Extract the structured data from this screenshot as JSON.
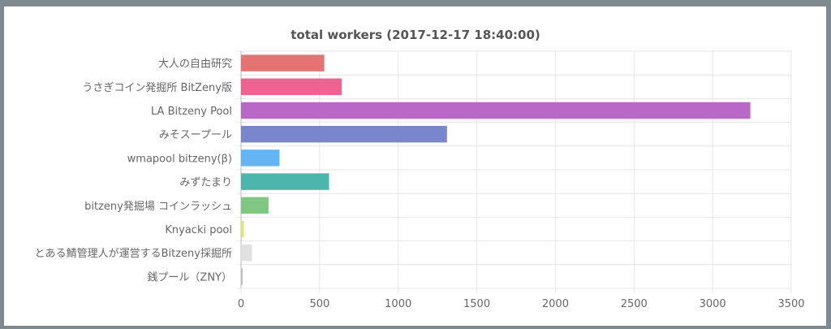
{
  "chart_data": {
    "type": "bar",
    "orientation": "horizontal",
    "title": "total workers (2017-12-17 18:40:00)",
    "categories": [
      "大人の自由研究",
      "うさぎコイン発掘所 BitZeny版",
      "LA Bitzeny Pool",
      "みそスープール",
      "wmapool bitzeny(β)",
      "みずたまり",
      "bitzeny発掘場 コインラッシュ",
      "Knyacki pool",
      "とある鯖管理人が運営するBitzeny採掘所",
      "銭プール（ZNY）"
    ],
    "values": [
      530,
      640,
      3240,
      1310,
      245,
      560,
      175,
      18,
      70,
      10
    ],
    "colors": [
      "#e57373",
      "#f06292",
      "#ba68c8",
      "#7986cb",
      "#64b5f6",
      "#4db6ac",
      "#81c784",
      "#dce775",
      "#e0e0e0",
      "#bdbdbd"
    ],
    "xlim": [
      0,
      3500
    ],
    "xticks": [
      "0",
      "500",
      "1000",
      "1500",
      "2000",
      "2500",
      "3000",
      "3500"
    ],
    "grid": true,
    "legend": "none"
  }
}
